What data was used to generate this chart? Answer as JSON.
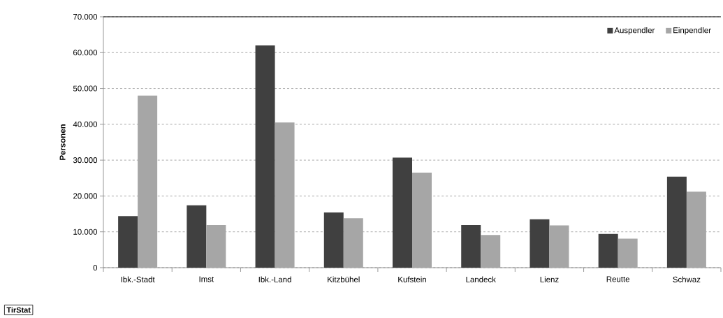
{
  "chart_data": {
    "type": "bar",
    "ylabel": "Personen",
    "categories": [
      "Ibk.-Stadt",
      "Imst",
      "Ibk.-Land",
      "Kitzbühel",
      "Kufstein",
      "Landeck",
      "Lienz",
      "Reutte",
      "Schwaz"
    ],
    "series": [
      {
        "name": "Auspendler",
        "color": "#404040",
        "values": [
          14400,
          17400,
          62000,
          15400,
          30700,
          11900,
          13500,
          9400,
          25400
        ]
      },
      {
        "name": "Einpendler",
        "color": "#a6a6a6",
        "values": [
          48000,
          11900,
          40500,
          13800,
          26500,
          9100,
          11800,
          8100,
          21200
        ]
      }
    ],
    "ylim": [
      0,
      70000
    ],
    "yticks": [
      {
        "value": 0,
        "label": "0"
      },
      {
        "value": 10000,
        "label": "10.000"
      },
      {
        "value": 20000,
        "label": "20.000"
      },
      {
        "value": 30000,
        "label": "30.000"
      },
      {
        "value": 40000,
        "label": "40.000"
      },
      {
        "value": 50000,
        "label": "50.000"
      },
      {
        "value": 60000,
        "label": "60.000"
      },
      {
        "value": 70000,
        "label": "70.000"
      }
    ],
    "grid": "y",
    "legend": "top right",
    "annotations": [
      "TirStat"
    ]
  }
}
